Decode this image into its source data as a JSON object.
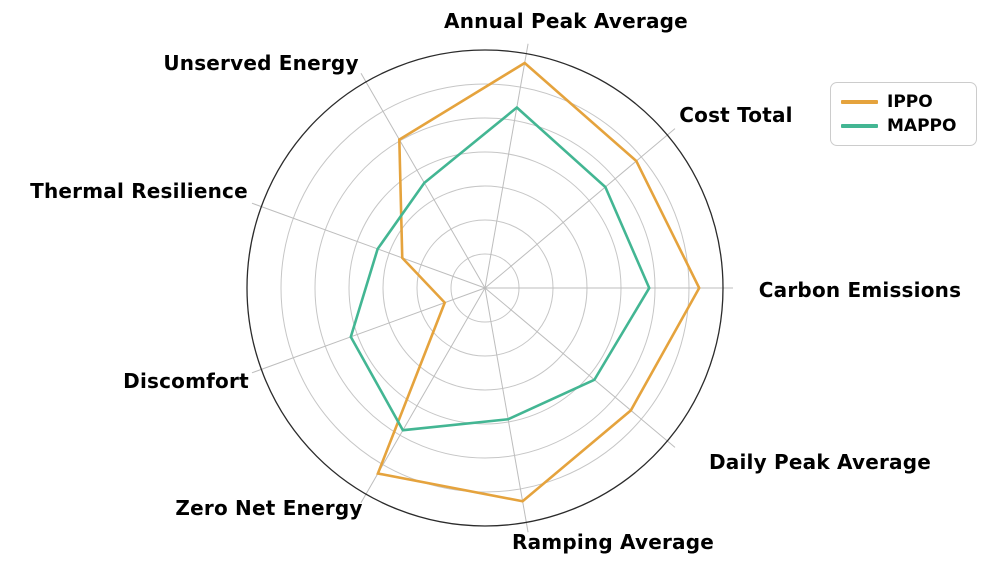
{
  "chart_data": {
    "type": "radar",
    "title": "",
    "categories": [
      "Annual Peak Average",
      "Cost Total",
      "Carbon Emissions",
      "Daily Peak Average",
      "Ramping Average",
      "Zero Net Energy",
      "Discomfort",
      "Thermal Resilience",
      "Unserved Energy"
    ],
    "axes_deg": [
      80,
      40,
      0,
      320,
      280,
      240,
      200,
      160,
      120
    ],
    "series": [
      {
        "name": "IPPO",
        "color": "#E5A33D",
        "values": [
          0.96,
          0.83,
          0.9,
          0.8,
          0.91,
          0.9,
          0.18,
          0.37,
          0.72
        ]
      },
      {
        "name": "MAPPO",
        "color": "#43B693",
        "values": [
          0.77,
          0.66,
          0.69,
          0.6,
          0.56,
          0.69,
          0.6,
          0.48,
          0.51
        ]
      }
    ],
    "r_axis": {
      "min": 0,
      "max": 1.0,
      "grid_circle_count": 6,
      "tick_labels_visible": false,
      "note": "values are fractions of the outer circle radius; no radial tick labels shown"
    },
    "grid_on": true,
    "fill": "none",
    "legend_position": "upper right"
  },
  "legend": {
    "items": [
      {
        "label": "IPPO",
        "color": "#E5A33D"
      },
      {
        "label": "MAPPO",
        "color": "#43B693"
      }
    ]
  },
  "colors": {
    "series_ippo": "#E5A33D",
    "series_mappo": "#43B693",
    "grid_line": "#c6c6c6",
    "spoke_line": "#bdbdbd",
    "outer_spine": "#2b2b2b",
    "label_text": "#000000",
    "legend_border": "#cccccc",
    "background": "#ffffff"
  }
}
